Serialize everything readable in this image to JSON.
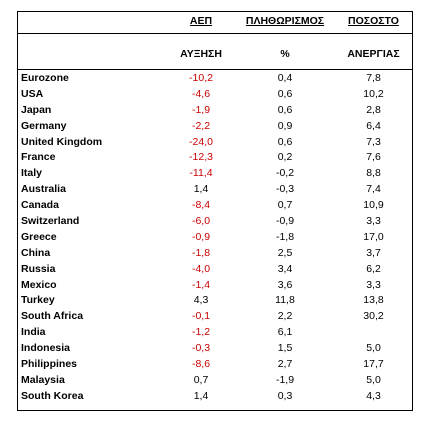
{
  "header": {
    "row1": {
      "col1": "ΑΕΠ",
      "col2": "ΠΛΗΘΩΡΙΣΜΟΣ",
      "col3": "ΠΟΣΟΣΤΟ"
    },
    "row2": {
      "col1": "ΑΥΞΗΣΗ",
      "col2": "%",
      "col3": "ΑΝΕΡΓΙΑΣ"
    }
  },
  "colors": {
    "negative_gdp": "#cc0000",
    "text": "#000000"
  },
  "table": {
    "rows": [
      {
        "country": "Eurozone",
        "gdp": "-10,2",
        "inflation": "0,4",
        "unemployment": "7,8"
      },
      {
        "country": "USA",
        "gdp": "-4,6",
        "inflation": "0,6",
        "unemployment": "10,2"
      },
      {
        "country": "Japan",
        "gdp": "-1,9",
        "inflation": "0,6",
        "unemployment": "2,8"
      },
      {
        "country": "Germany",
        "gdp": "-2,2",
        "inflation": "0,9",
        "unemployment": "6,4"
      },
      {
        "country": "United Kingdom",
        "gdp": "-24,0",
        "inflation": "0,6",
        "unemployment": "7,3"
      },
      {
        "country": "France",
        "gdp": "-12,3",
        "inflation": "0,2",
        "unemployment": "7,6"
      },
      {
        "country": "Italy",
        "gdp": "-11,4",
        "inflation": "-0,2",
        "unemployment": "8,8"
      },
      {
        "country": "Australia",
        "gdp": "1,4",
        "inflation": "-0,3",
        "unemployment": "7,4"
      },
      {
        "country": "Canada",
        "gdp": "-8,4",
        "inflation": "0,7",
        "unemployment": "10,9"
      },
      {
        "country": "Switzerland",
        "gdp": "-6,0",
        "inflation": "-0,9",
        "unemployment": "3,3"
      },
      {
        "country": "Greece",
        "gdp": "-0,9",
        "inflation": "-1,8",
        "unemployment": "17,0"
      },
      {
        "country": "China",
        "gdp": "-1,8",
        "inflation": "2,5",
        "unemployment": "3,7"
      },
      {
        "country": "Russia",
        "gdp": "-4,0",
        "inflation": "3,4",
        "unemployment": "6,2"
      },
      {
        "country": "Mexico",
        "gdp": "-1,4",
        "inflation": "3,6",
        "unemployment": "3,3"
      },
      {
        "country": "Turkey",
        "gdp": "4,3",
        "inflation": "11,8",
        "unemployment": "13,8"
      },
      {
        "country": "South Africa",
        "gdp": "-0,1",
        "inflation": "2,2",
        "unemployment": "30,2"
      },
      {
        "country": "India",
        "gdp": "-1,2",
        "inflation": "6,1",
        "unemployment": ""
      },
      {
        "country": "Indonesia",
        "gdp": "-0,3",
        "inflation": "1,5",
        "unemployment": "5,0"
      },
      {
        "country": "Philippines",
        "gdp": "-8,6",
        "inflation": "2,7",
        "unemployment": "17,7"
      },
      {
        "country": "Malaysia",
        "gdp": "0,7",
        "inflation": "-1,9",
        "unemployment": "5,0"
      },
      {
        "country": "South Korea",
        "gdp": "1,4",
        "inflation": "0,3",
        "unemployment": "4,3"
      }
    ]
  }
}
